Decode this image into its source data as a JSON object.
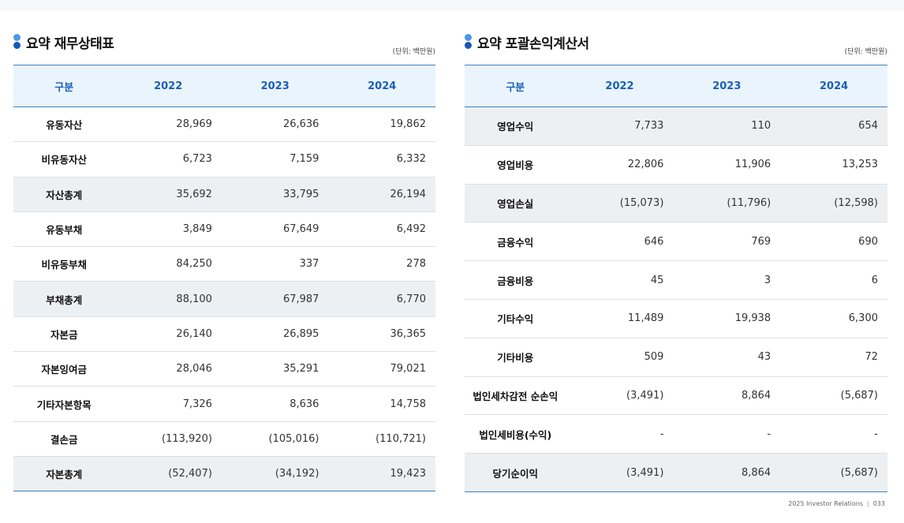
{
  "balance_sheet": {
    "title": "요약 재무상태표",
    "unit": "(단위: 백만원)",
    "headers": [
      "구분",
      "2022",
      "2023",
      "2024"
    ],
    "rows": [
      {
        "label": "유동자산",
        "values": [
          "28,969",
          "26,636",
          "19,862"
        ],
        "total": false
      },
      {
        "label": "비유동자산",
        "values": [
          "6,723",
          "7,159",
          "6,332"
        ],
        "total": false
      },
      {
        "label": "자산총계",
        "values": [
          "35,692",
          "33,795",
          "26,194"
        ],
        "total": true
      },
      {
        "label": "유동부채",
        "values": [
          "3,849",
          "67,649",
          "6,492"
        ],
        "total": false
      },
      {
        "label": "비유동부채",
        "values": [
          "84,250",
          "337",
          "278"
        ],
        "total": false
      },
      {
        "label": "부채총계",
        "values": [
          "88,100",
          "67,987",
          "6,770"
        ],
        "total": true
      },
      {
        "label": "자본금",
        "values": [
          "26,140",
          "26,895",
          "36,365"
        ],
        "total": false
      },
      {
        "label": "자본잉여금",
        "values": [
          "28,046",
          "35,291",
          "79,021"
        ],
        "total": false
      },
      {
        "label": "기타자본항목",
        "values": [
          "7,326",
          "8,636",
          "14,758"
        ],
        "total": false
      },
      {
        "label": "결손금",
        "values": [
          "(113,920)",
          "(105,016)",
          "(110,721)"
        ],
        "total": false
      },
      {
        "label": "자본총계",
        "values": [
          "(52,407)",
          "(34,192)",
          "19,423"
        ],
        "total": true
      }
    ]
  },
  "income_statement": {
    "title": "요약 포괄손익계산서",
    "unit": "(단위: 백만원)",
    "headers": [
      "구분",
      "2022",
      "2023",
      "2024"
    ],
    "rows": [
      {
        "label": "영업수익",
        "values": [
          "7,733",
          "110",
          "654"
        ],
        "total": true
      },
      {
        "label": "영업비용",
        "values": [
          "22,806",
          "11,906",
          "13,253"
        ],
        "total": false
      },
      {
        "label": "영업손실",
        "values": [
          "(15,073)",
          "(11,796)",
          "(12,598)"
        ],
        "total": true
      },
      {
        "label": "금융수익",
        "values": [
          "646",
          "769",
          "690"
        ],
        "total": false
      },
      {
        "label": "금융비용",
        "values": [
          "45",
          "3",
          "6"
        ],
        "total": false
      },
      {
        "label": "기타수익",
        "values": [
          "11,489",
          "19,938",
          "6,300"
        ],
        "total": false
      },
      {
        "label": "기타비용",
        "values": [
          "509",
          "43",
          "72"
        ],
        "total": false
      },
      {
        "label": "법인세차감전 순손익",
        "values": [
          "(3,491)",
          "8,864",
          "(5,687)"
        ],
        "total": false
      },
      {
        "label": "법인세비용(수익)",
        "values": [
          "-",
          "-",
          "-"
        ],
        "total": false
      },
      {
        "label": "당기순이익",
        "values": [
          "(3,491)",
          "8,864",
          "(5,687)"
        ],
        "total": true
      }
    ]
  },
  "footer": {
    "text": "2025 Investor Relations",
    "page": "033"
  },
  "colors": {
    "accent": "#1a5fb8",
    "header_bg": "#eaf4fc",
    "total_bg": "#edf0f2"
  }
}
